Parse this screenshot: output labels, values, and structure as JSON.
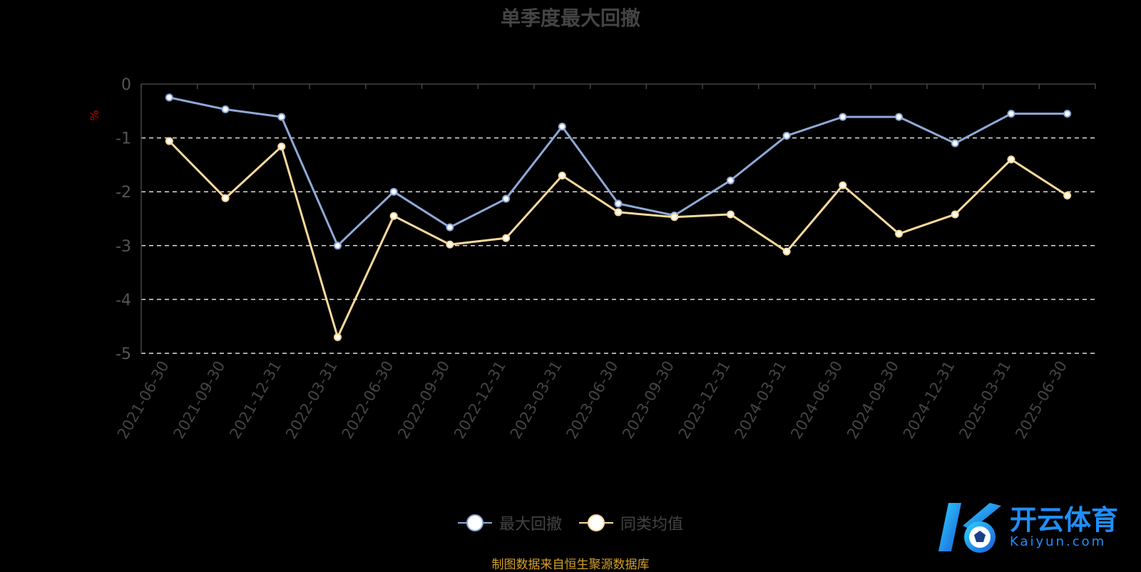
{
  "chart_data": {
    "type": "line",
    "title": "单季度最大回撤",
    "ylabel": "%",
    "ylim": [
      -5,
      0
    ],
    "yticks": [
      0,
      -1,
      -2,
      -3,
      -4,
      -5
    ],
    "grid": true,
    "legend_position": "bottom",
    "categories": [
      "2021-06-30",
      "2021-09-30",
      "2021-12-31",
      "2022-03-31",
      "2022-06-30",
      "2022-09-30",
      "2022-12-31",
      "2023-03-31",
      "2023-06-30",
      "2023-09-30",
      "2023-12-31",
      "2024-03-31",
      "2024-06-30",
      "2024-09-30",
      "2024-12-31",
      "2025-03-31",
      "2025-06-30"
    ],
    "series": [
      {
        "name": "最大回撤",
        "color": "#8fa9d8",
        "values": [
          -0.25,
          -0.47,
          -0.61,
          -3.0,
          -2.0,
          -2.66,
          -2.13,
          -0.79,
          -2.22,
          -2.44,
          -1.79,
          -0.96,
          -0.61,
          -0.61,
          -1.1,
          -0.55,
          -0.55
        ]
      },
      {
        "name": "同类均值",
        "color": "#f9d99a",
        "values": [
          -1.06,
          -2.12,
          -1.16,
          -4.7,
          -2.45,
          -2.98,
          -2.86,
          -1.7,
          -2.38,
          -2.47,
          -2.42,
          -3.11,
          -1.88,
          -2.78,
          -2.42,
          -1.4,
          -2.07
        ]
      }
    ]
  },
  "footer": {
    "source": "制图数据来自恒生聚源数据库"
  },
  "watermark": {
    "name": "开云体育",
    "url": "Kaiyun.com"
  }
}
